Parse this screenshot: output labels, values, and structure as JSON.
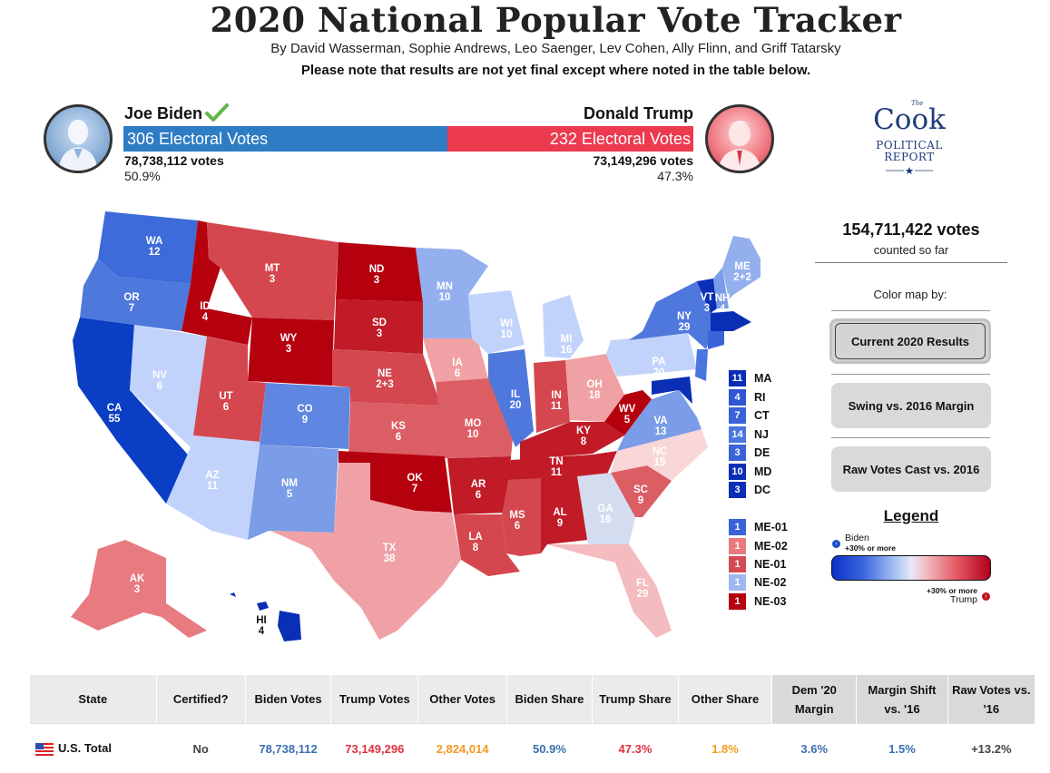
{
  "header": {
    "title": "2020 National Popular Vote Tracker",
    "byline": "By David Wasserman, Sophie Andrews, Leo Saenger, Lev Cohen, Ally Flinn, and Griff Tatarsky",
    "note": "Please note that results are not yet final except where noted in the table below."
  },
  "candidates": {
    "biden": {
      "name": "Joe Biden",
      "electoral": "306 Electoral Votes",
      "votes": "78,738,112 votes",
      "pct": "50.9%",
      "color": "#2e7cc4",
      "ev_number": 306
    },
    "trump": {
      "name": "Donald Trump",
      "electoral": "232 Electoral Votes",
      "votes": "73,149,296 votes",
      "pct": "47.3%",
      "color": "#ec3a4e",
      "ev_number": 232
    }
  },
  "logo": {
    "the": "The",
    "cook": "Cook",
    "political": "POLITICAL",
    "report": "REPORT"
  },
  "sidebar": {
    "total_votes": "154,711,422 votes",
    "total_sub": "counted so far",
    "colormap_label": "Color map by:",
    "buttons": [
      "Current 2020 Results",
      "Swing vs. 2016 Margin",
      "Raw Votes Cast vs. 2016"
    ],
    "legend_title": "Legend",
    "legend_biden": "Biden",
    "legend_biden_sub": "+30% or more",
    "legend_trump": "Trump",
    "legend_trump_sub": "+30% or more"
  },
  "small_states": [
    {
      "ev": "11",
      "label": "MA",
      "color": "#0a2fb5"
    },
    {
      "ev": "4",
      "label": "RI",
      "color": "#2f57d4"
    },
    {
      "ev": "7",
      "label": "CT",
      "color": "#3a63d8"
    },
    {
      "ev": "14",
      "label": "NJ",
      "color": "#4a76e0"
    },
    {
      "ev": "3",
      "label": "DE",
      "color": "#3a63d8"
    },
    {
      "ev": "10",
      "label": "MD",
      "color": "#0a2fb5"
    },
    {
      "ev": "3",
      "label": "DC",
      "color": "#0a2fb5"
    }
  ],
  "districts": [
    {
      "ev": "1",
      "label": "ME-01",
      "color": "#3a63d8"
    },
    {
      "ev": "1",
      "label": "ME-02",
      "color": "#e87b80"
    },
    {
      "ev": "1",
      "label": "NE-01",
      "color": "#d44a52"
    },
    {
      "ev": "1",
      "label": "NE-02",
      "color": "#9fb7f0"
    },
    {
      "ev": "1",
      "label": "NE-03",
      "color": "#b5000e"
    }
  ],
  "map_labels": [
    {
      "abbr": "WA",
      "ev": "12"
    },
    {
      "abbr": "OR",
      "ev": "7"
    },
    {
      "abbr": "CA",
      "ev": "55"
    },
    {
      "abbr": "NV",
      "ev": "6"
    },
    {
      "abbr": "ID",
      "ev": "4"
    },
    {
      "abbr": "MT",
      "ev": "3"
    },
    {
      "abbr": "WY",
      "ev": "3"
    },
    {
      "abbr": "UT",
      "ev": "6"
    },
    {
      "abbr": "AZ",
      "ev": "11"
    },
    {
      "abbr": "CO",
      "ev": "9"
    },
    {
      "abbr": "NM",
      "ev": "5"
    },
    {
      "abbr": "ND",
      "ev": "3"
    },
    {
      "abbr": "SD",
      "ev": "3"
    },
    {
      "abbr": "NE",
      "ev": "2+3"
    },
    {
      "abbr": "KS",
      "ev": "6"
    },
    {
      "abbr": "OK",
      "ev": "7"
    },
    {
      "abbr": "TX",
      "ev": "38"
    },
    {
      "abbr": "MN",
      "ev": "10"
    },
    {
      "abbr": "IA",
      "ev": "6"
    },
    {
      "abbr": "MO",
      "ev": "10"
    },
    {
      "abbr": "AR",
      "ev": "6"
    },
    {
      "abbr": "LA",
      "ev": "8"
    },
    {
      "abbr": "WI",
      "ev": "10"
    },
    {
      "abbr": "IL",
      "ev": "20"
    },
    {
      "abbr": "MI",
      "ev": "16"
    },
    {
      "abbr": "IN",
      "ev": "11"
    },
    {
      "abbr": "OH",
      "ev": "18"
    },
    {
      "abbr": "KY",
      "ev": "8"
    },
    {
      "abbr": "TN",
      "ev": "11"
    },
    {
      "abbr": "MS",
      "ev": "6"
    },
    {
      "abbr": "AL",
      "ev": "9"
    },
    {
      "abbr": "GA",
      "ev": "16"
    },
    {
      "abbr": "FL",
      "ev": "29"
    },
    {
      "abbr": "SC",
      "ev": "9"
    },
    {
      "abbr": "NC",
      "ev": "15"
    },
    {
      "abbr": "VA",
      "ev": "13"
    },
    {
      "abbr": "WV",
      "ev": "5"
    },
    {
      "abbr": "PA",
      "ev": "20"
    },
    {
      "abbr": "NY",
      "ev": "29"
    },
    {
      "abbr": "VT",
      "ev": "3"
    },
    {
      "abbr": "NH",
      "ev": "4"
    },
    {
      "abbr": "ME",
      "ev": "2+2"
    },
    {
      "abbr": "AK",
      "ev": "3"
    },
    {
      "abbr": "HI",
      "ev": "4"
    }
  ],
  "table": {
    "headers": [
      "State",
      "Certified?",
      "Biden Votes",
      "Trump Votes",
      "Other Votes",
      "Biden Share",
      "Trump Share",
      "Other Share",
      "Dem '20 Margin",
      "Margin Shift vs. '16",
      "Raw Votes vs. '16"
    ],
    "rows": [
      {
        "state": "U.S. Total",
        "certified": "No",
        "biden_votes": "78,738,112",
        "trump_votes": "73,149,296",
        "other_votes": "2,824,014",
        "biden_share": "50.9%",
        "trump_share": "47.3%",
        "other_share": "1.8%",
        "dem_margin": "3.6%",
        "margin_shift": "1.5%",
        "raw_votes": "+13.2%"
      }
    ]
  },
  "colors": {
    "biden_blue": "#2e7cc4",
    "trump_red": "#ec3a4e",
    "other_orange": "#f39a1e",
    "margin_blue": "#3a6fb0"
  }
}
